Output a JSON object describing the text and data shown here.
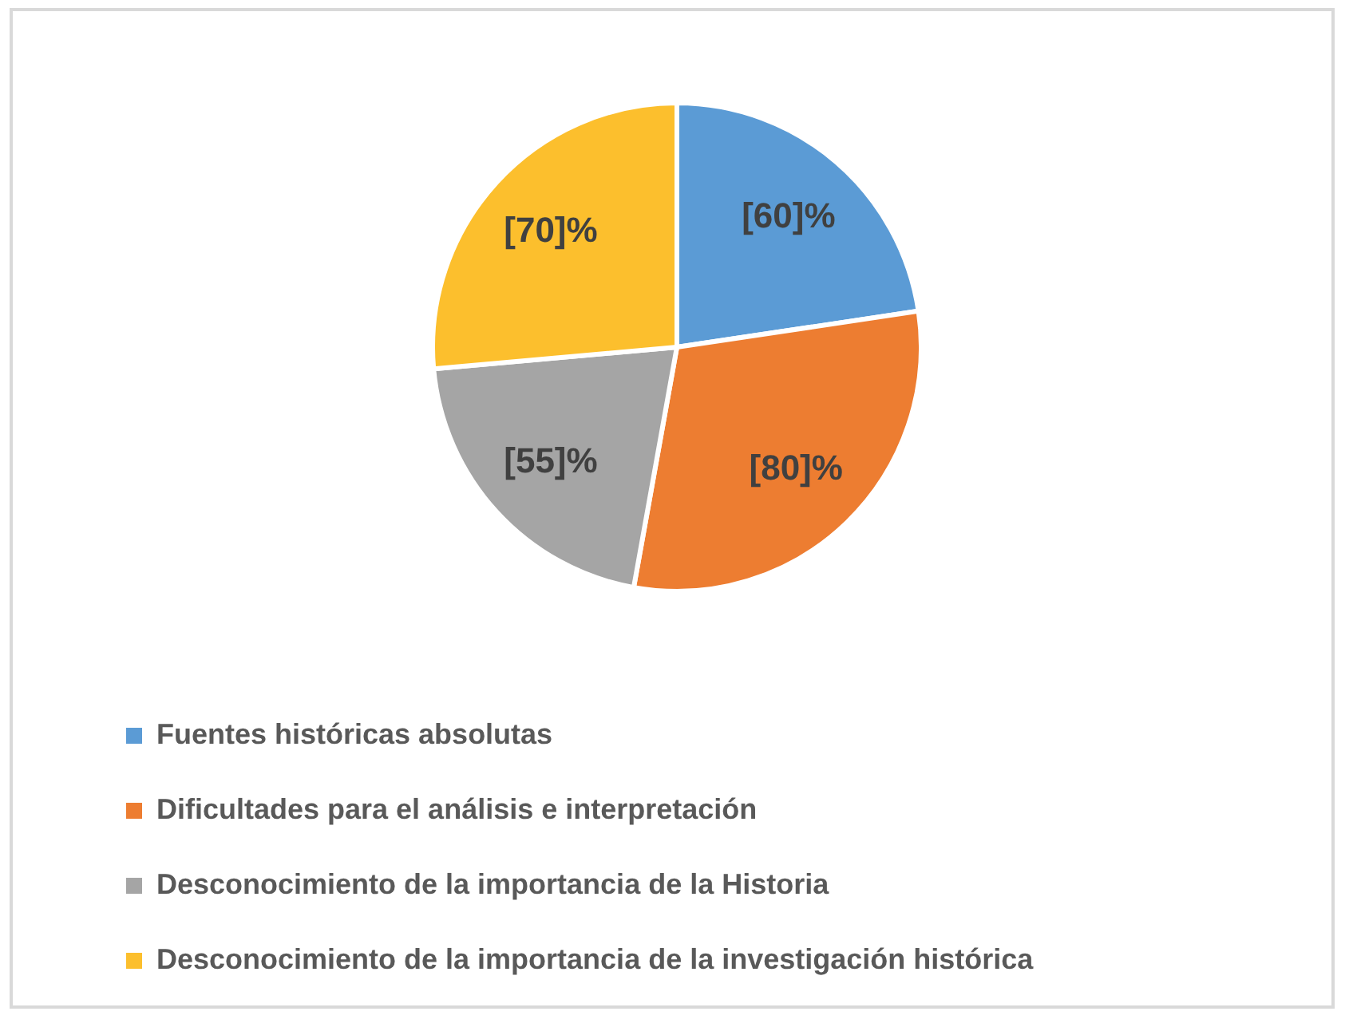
{
  "chart_data": {
    "type": "pie",
    "categories": [
      "Fuentes históricas absolutas",
      "Dificultades para el análisis e interpretación",
      "Desconocimiento de la importancia de la Historia",
      "Desconocimiento de la importancia de la investigación histórica"
    ],
    "values": [
      60,
      80,
      55,
      70
    ],
    "colors": [
      "#5b9bd5",
      "#ed7d31",
      "#a5a5a5",
      "#fcbf2d"
    ],
    "value_labels": [
      "[60]%",
      "[80]%",
      "[55]%",
      "[70]%"
    ],
    "legend": "bottom"
  }
}
